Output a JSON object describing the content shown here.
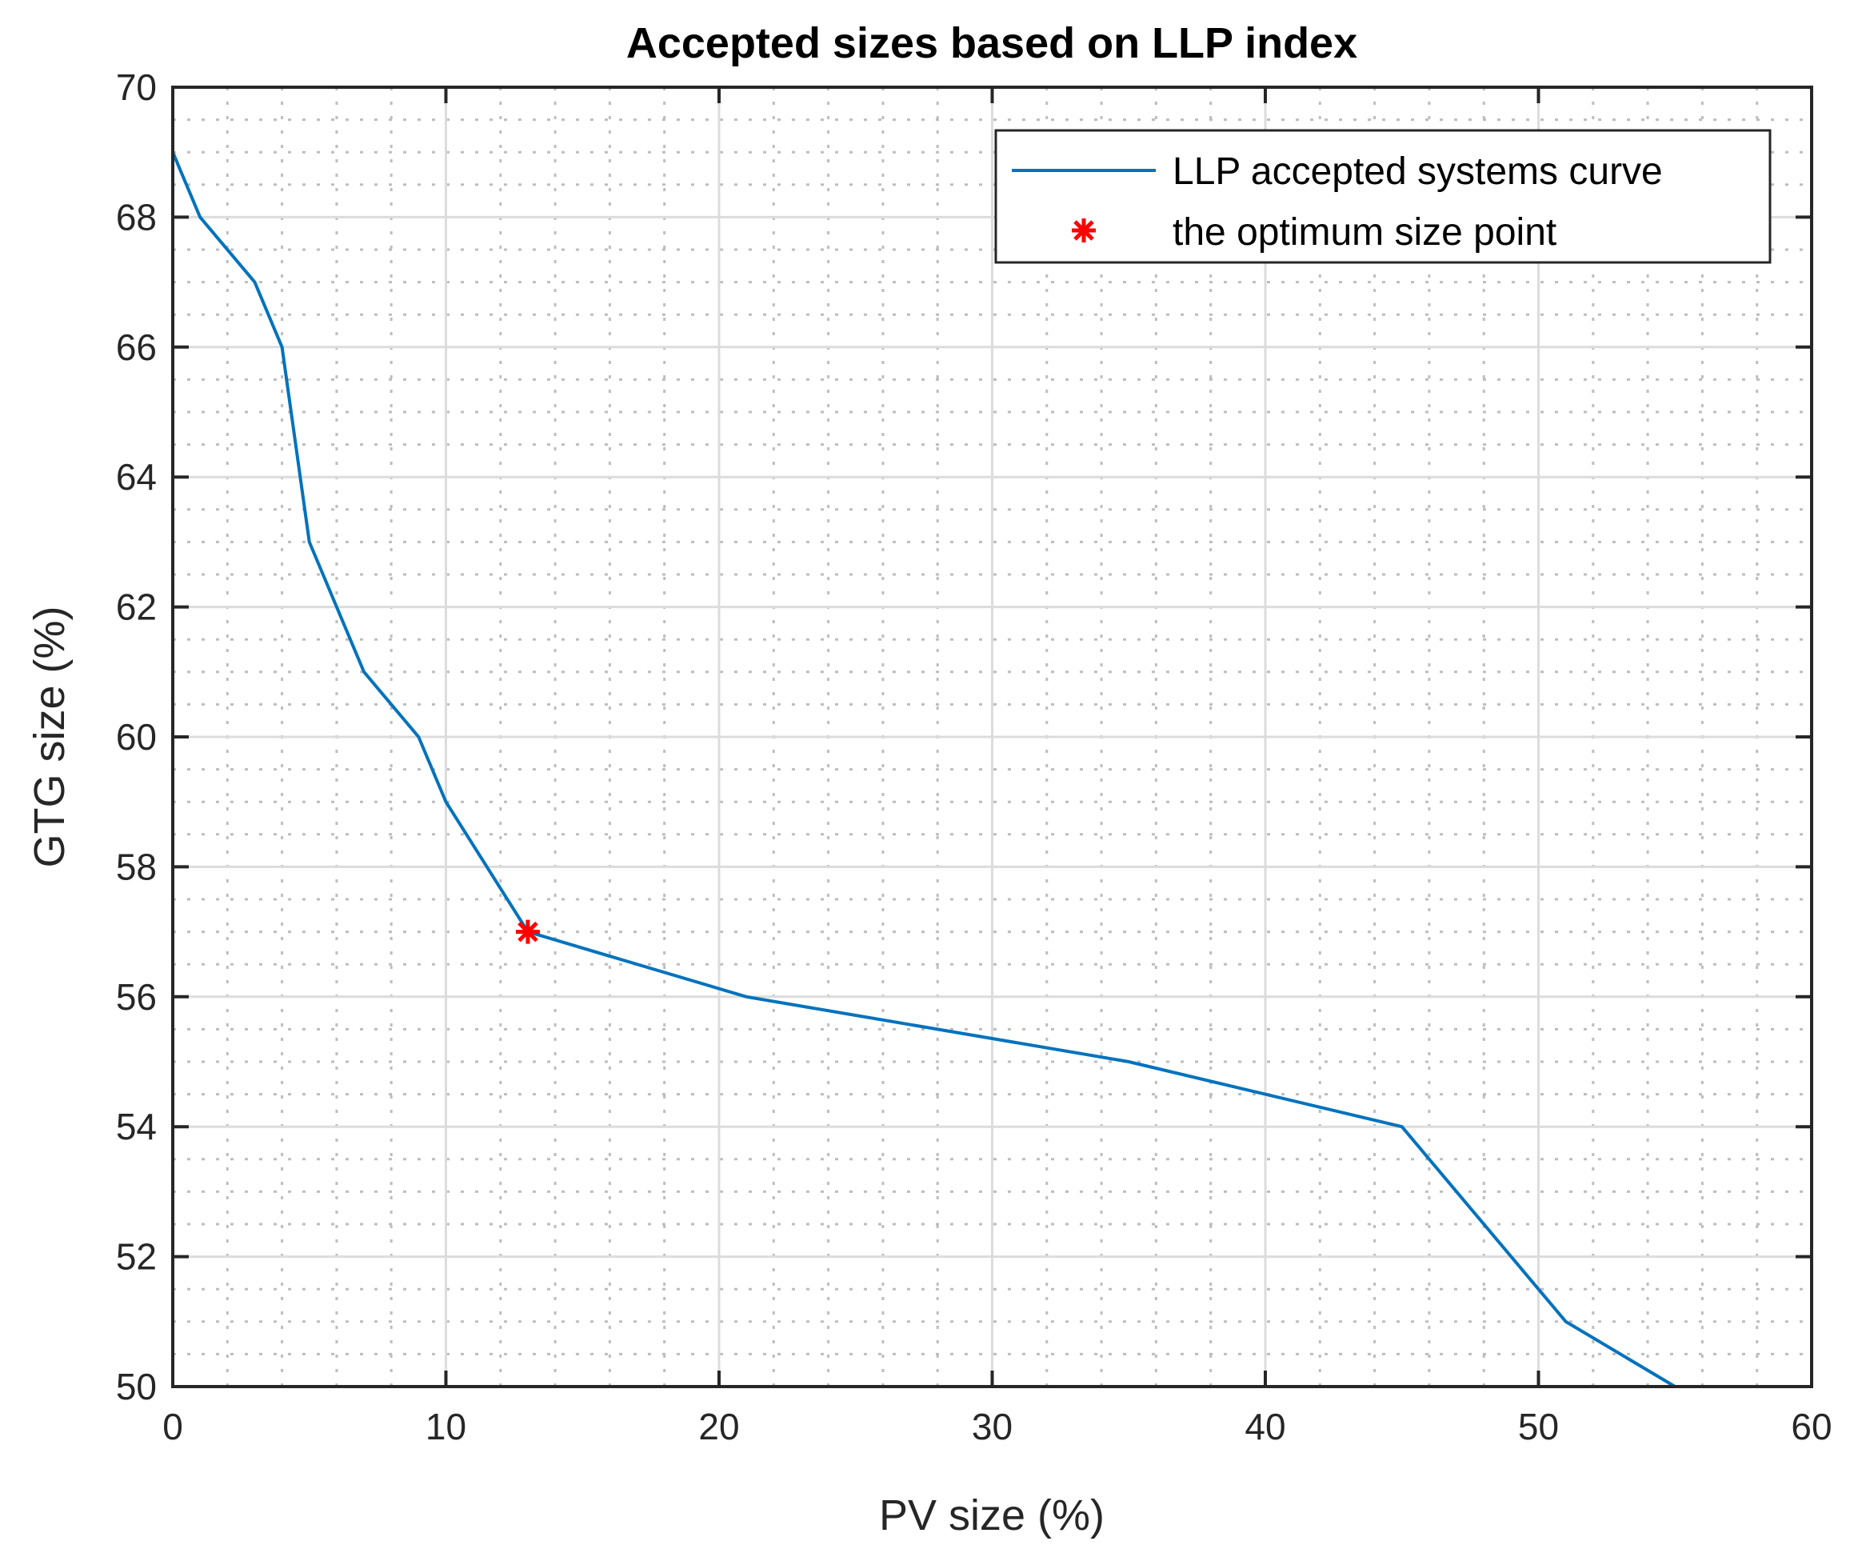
{
  "chart_data": {
    "type": "line",
    "title": "Accepted sizes based on LLP index",
    "xlabel": "PV size (%)",
    "ylabel": "GTG size (%)",
    "xlim": [
      0,
      60
    ],
    "ylim": [
      50,
      70
    ],
    "xticks": [
      0,
      10,
      20,
      30,
      40,
      50,
      60
    ],
    "yticks": [
      50,
      52,
      54,
      56,
      58,
      60,
      62,
      64,
      66,
      68,
      70
    ],
    "grid": "major and minor",
    "legend_position": "top-right",
    "series": [
      {
        "name": "LLP accepted systems curve",
        "color": "#0072BD",
        "style": "line",
        "x": [
          0,
          1,
          3,
          4,
          5,
          7,
          9,
          10,
          13,
          21,
          35,
          45,
          51,
          55
        ],
        "y": [
          69,
          68,
          67,
          66,
          63,
          61,
          60,
          59,
          57,
          56,
          55,
          54,
          51,
          50
        ]
      },
      {
        "name": "the optimum size point",
        "color": "#FF0000",
        "style": "asterisk",
        "x": [
          13
        ],
        "y": [
          57
        ]
      }
    ]
  }
}
